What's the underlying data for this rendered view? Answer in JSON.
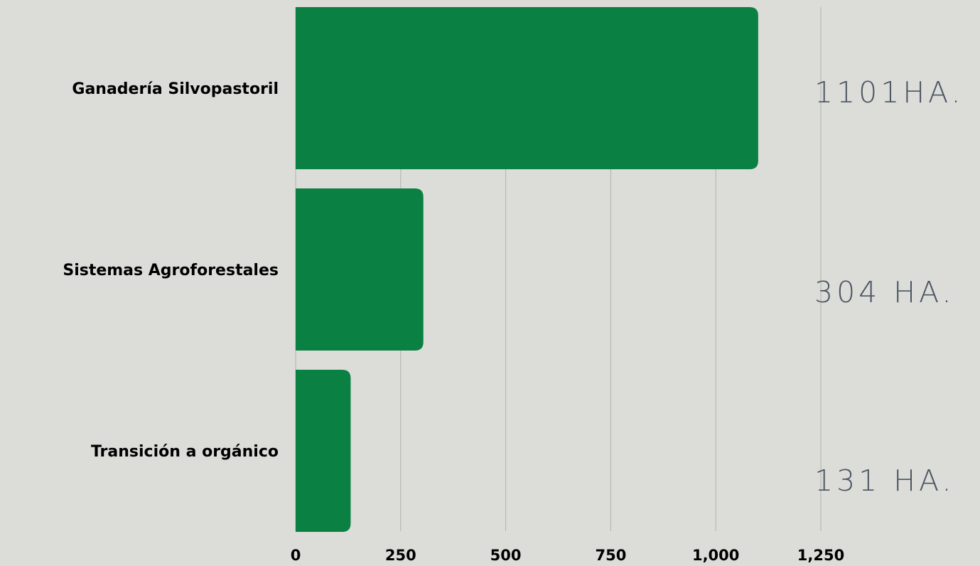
{
  "chart_data": {
    "type": "bar",
    "orientation": "horizontal",
    "categories": [
      "Ganadería Silvopastoril",
      "Sistemas Agroforestales",
      "Transición a orgánico"
    ],
    "values": [
      1101,
      304,
      131
    ],
    "annotations": [
      "1101HA.",
      "304 HA.",
      "131 HA."
    ],
    "xticks": [
      0,
      250,
      500,
      750,
      "1,000",
      "1,250"
    ],
    "xlim": [
      0,
      1250
    ],
    "grid": true,
    "bar_color": "#0b8043",
    "grid_color": "#b3b3ad",
    "annotation_color": "#4a5563",
    "background": "#dcdcd8"
  }
}
